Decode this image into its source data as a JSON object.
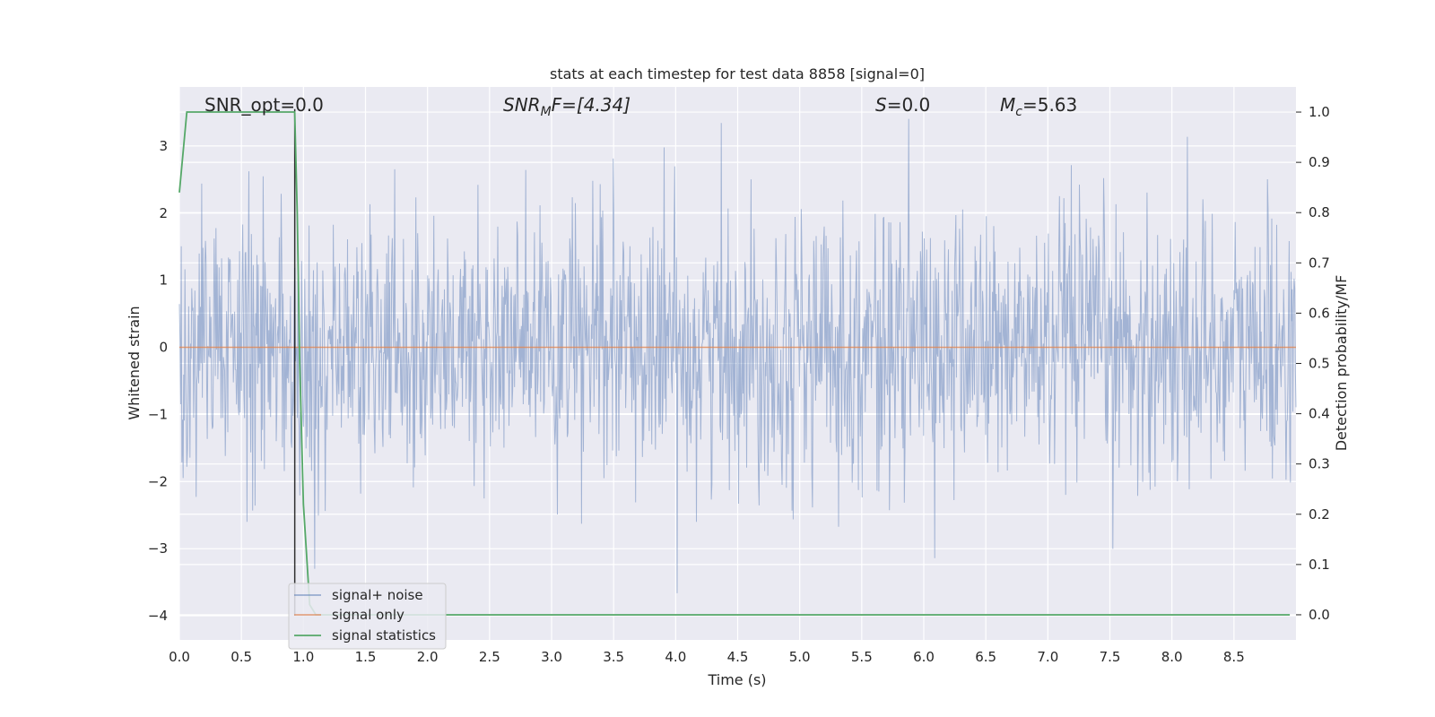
{
  "chart_data": {
    "type": "line",
    "title": "stats at each timestep for test data 8858 [signal=0]",
    "xlabel": "Time (s)",
    "ylabel": "Whitened strain",
    "ylabel_right": "Detection probability/MF",
    "xlim": [
      0.0,
      9.0
    ],
    "ylim": [
      -4.36,
      3.88
    ],
    "ylim_right": [
      -0.05,
      1.05
    ],
    "x_ticks": [
      "0.0",
      "0.5",
      "1.0",
      "1.5",
      "2.0",
      "2.5",
      "3.0",
      "3.5",
      "4.0",
      "4.5",
      "5.0",
      "5.5",
      "6.0",
      "6.5",
      "7.0",
      "7.5",
      "8.0",
      "8.5"
    ],
    "y_ticks": [
      "3",
      "2",
      "1",
      "0",
      "−1",
      "−2",
      "−3",
      "−4"
    ],
    "y_ticks_right": [
      "1.0",
      "0.9",
      "0.8",
      "0.7",
      "0.6",
      "0.5",
      "0.4",
      "0.3",
      "0.2",
      "0.1",
      "0.0"
    ],
    "grid": true,
    "legend_position": "lower-left",
    "annotations": {
      "snr_opt": "SNR_opt=0.0",
      "snr_mf_base": "SNR",
      "snr_mf_sub": "M",
      "snr_mf_rest": "F=[4.34]",
      "s_var": "S",
      "s_rest": "=0.0",
      "mc_var": "M",
      "mc_sub": "c",
      "mc_rest": "=5.63"
    },
    "marker_x": 0.93,
    "series": [
      {
        "name": "signal+ noise",
        "color": "#4c72b0",
        "axis": "left",
        "description_stats": {
          "typical_range": [
            -2.0,
            2.0
          ],
          "max": 3.5,
          "min": -4.0
        }
      },
      {
        "name": "signal only",
        "color": "#dd8452",
        "axis": "left",
        "x": [
          0.0,
          9.0
        ],
        "values": [
          0.0,
          0.0
        ]
      },
      {
        "name": "signal statistics",
        "color": "#55a868",
        "axis": "right",
        "x": [
          0.0,
          0.06,
          0.1,
          0.2,
          0.4,
          0.6,
          0.8,
          0.93,
          0.95,
          0.97,
          1.0,
          1.05,
          1.1,
          1.2,
          2.0,
          3.0,
          4.0,
          5.0,
          6.0,
          7.0,
          8.0,
          8.95
        ],
        "values": [
          0.84,
          1.0,
          1.0,
          1.0,
          1.0,
          1.0,
          1.0,
          1.0,
          0.8,
          0.5,
          0.22,
          0.02,
          0.0,
          0.0,
          0.0,
          0.0,
          0.0,
          0.0,
          0.0,
          0.0,
          0.0,
          0.0
        ]
      }
    ]
  }
}
